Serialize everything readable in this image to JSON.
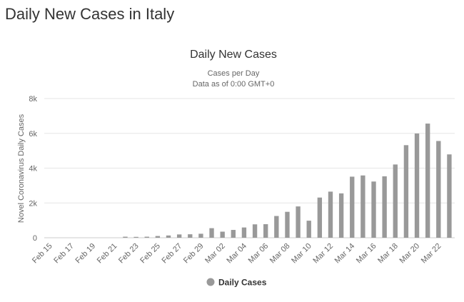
{
  "page": {
    "heading": "Daily New Cases in Italy"
  },
  "chart_data": {
    "type": "bar",
    "title": "Daily New Cases",
    "subtitle": [
      "Cases per Day",
      "Data as of 0:00 GMT+0"
    ],
    "xlabel": "",
    "ylabel": "Novel Coronavirus Daily Cases",
    "ylim": [
      0,
      8000
    ],
    "yticks": [
      0,
      2000,
      4000,
      6000,
      8000
    ],
    "ytick_labels": [
      "0",
      "2k",
      "4k",
      "6k",
      "8k"
    ],
    "grid": true,
    "legend_position": "bottom-center",
    "color": "#999999",
    "categories": [
      "Feb 15",
      "Feb 16",
      "Feb 17",
      "Feb 18",
      "Feb 19",
      "Feb 20",
      "Feb 21",
      "Feb 22",
      "Feb 23",
      "Feb 24",
      "Feb 25",
      "Feb 26",
      "Feb 27",
      "Feb 28",
      "Feb 29",
      "Mar 01",
      "Mar 02",
      "Mar 03",
      "Mar 04",
      "Mar 05",
      "Mar 06",
      "Mar 07",
      "Mar 08",
      "Mar 09",
      "Mar 10",
      "Mar 11",
      "Mar 12",
      "Mar 13",
      "Mar 14",
      "Mar 15",
      "Mar 16",
      "Mar 17",
      "Mar 18",
      "Mar 19",
      "Mar 20",
      "Mar 21",
      "Mar 22",
      "Mar 23"
    ],
    "shown_tick_labels": [
      "Feb 15",
      "Feb 17",
      "Feb 19",
      "Feb 21",
      "Feb 23",
      "Feb 25",
      "Feb 27",
      "Feb 29",
      "Mar 02",
      "Mar 04",
      "Mar 06",
      "Mar 08",
      "Mar 10",
      "Mar 12",
      "Mar 14",
      "Mar 16",
      "Mar 18",
      "Mar 20",
      "Mar 22"
    ],
    "series": [
      {
        "name": "Daily Cases",
        "values": [
          0,
          0,
          0,
          0,
          0,
          0,
          0,
          60,
          50,
          60,
          100,
          130,
          190,
          200,
          230,
          550,
          350,
          450,
          590,
          770,
          780,
          1250,
          1490,
          1800,
          980,
          2310,
          2650,
          2550,
          3510,
          3580,
          3230,
          3530,
          4210,
          5320,
          5990,
          6560,
          5560,
          4790
        ]
      }
    ]
  }
}
